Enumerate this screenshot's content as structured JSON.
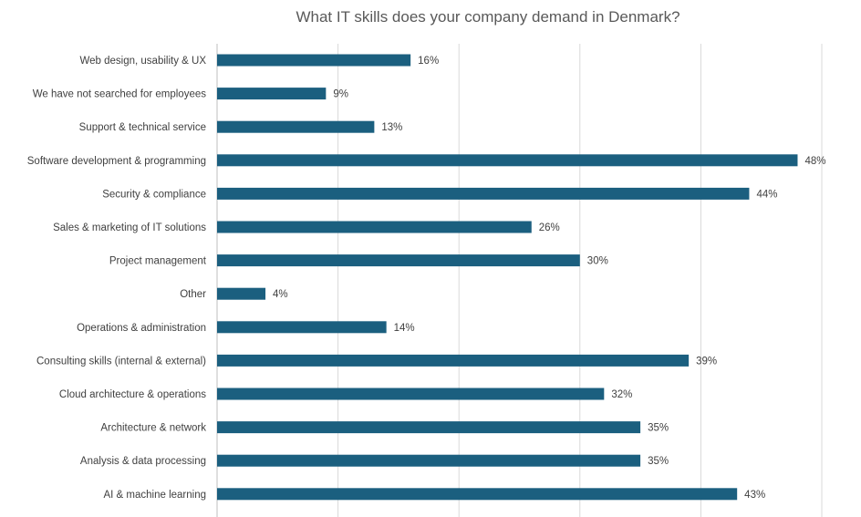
{
  "chart_data": {
    "type": "bar",
    "orientation": "horizontal",
    "title": "What IT skills does your company demand in Denmark?",
    "xlabel": "",
    "ylabel": "",
    "xlim": [
      0,
      50
    ],
    "grid": true,
    "grid_step": 10,
    "bar_color": "#1b5f7f",
    "categories": [
      "Web design, usability & UX",
      "We have not searched for employees",
      "Support & technical service",
      "Software development & programming",
      "Security & compliance",
      "Sales & marketing of IT solutions",
      "Project management",
      "Other",
      "Operations & administration",
      "Consulting skills (internal & external)",
      "Cloud architecture & operations",
      "Architecture & network",
      "Analysis & data processing",
      "AI & machine learning"
    ],
    "values": [
      16,
      9,
      13,
      48,
      44,
      26,
      30,
      4,
      14,
      39,
      32,
      35,
      35,
      43
    ],
    "data_labels": [
      "16%",
      "9%",
      "13%",
      "48%",
      "44%",
      "26%",
      "30%",
      "4%",
      "14%",
      "39%",
      "32%",
      "35%",
      "35%",
      "43%"
    ]
  }
}
